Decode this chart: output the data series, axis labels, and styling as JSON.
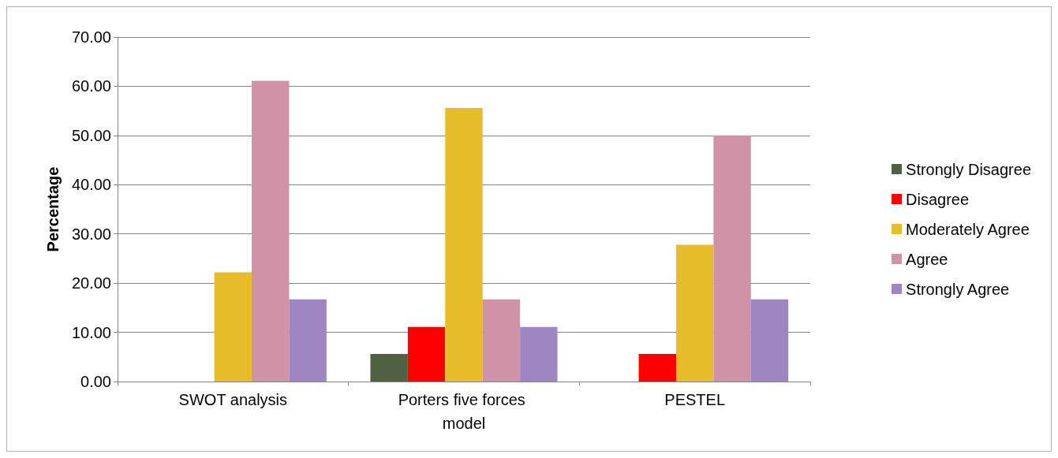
{
  "chart_data": {
    "type": "bar",
    "ylabel": "Percentage",
    "categories": [
      "SWOT analysis",
      "Porters five forces model",
      "PESTEL"
    ],
    "series": [
      {
        "name": "Strongly Disagree",
        "color": "#4f6140",
        "values": [
          0,
          5.6,
          0
        ]
      },
      {
        "name": "Disagree",
        "color": "#ff0000",
        "values": [
          0,
          11.1,
          5.6
        ]
      },
      {
        "name": "Moderately Agree",
        "color": "#e6bc2a",
        "values": [
          22.2,
          55.6,
          27.8
        ]
      },
      {
        "name": "Agree",
        "color": "#d092a7",
        "values": [
          61.1,
          16.7,
          50
        ]
      },
      {
        "name": "Strongly Agree",
        "color": "#9e86c2",
        "values": [
          16.7,
          11.1,
          16.7
        ]
      }
    ],
    "ylim": [
      0,
      70
    ],
    "yticks": [
      {
        "value": 0,
        "label": "0.00"
      },
      {
        "value": 10,
        "label": "10.00"
      },
      {
        "value": 20,
        "label": "20.00"
      },
      {
        "value": 30,
        "label": "30.00"
      },
      {
        "value": 40,
        "label": "40.00"
      },
      {
        "value": 50,
        "label": "50.00"
      },
      {
        "value": 60,
        "label": "60.00"
      },
      {
        "value": 70,
        "label": "70.00"
      }
    ],
    "grid": "y",
    "legend": "right"
  }
}
